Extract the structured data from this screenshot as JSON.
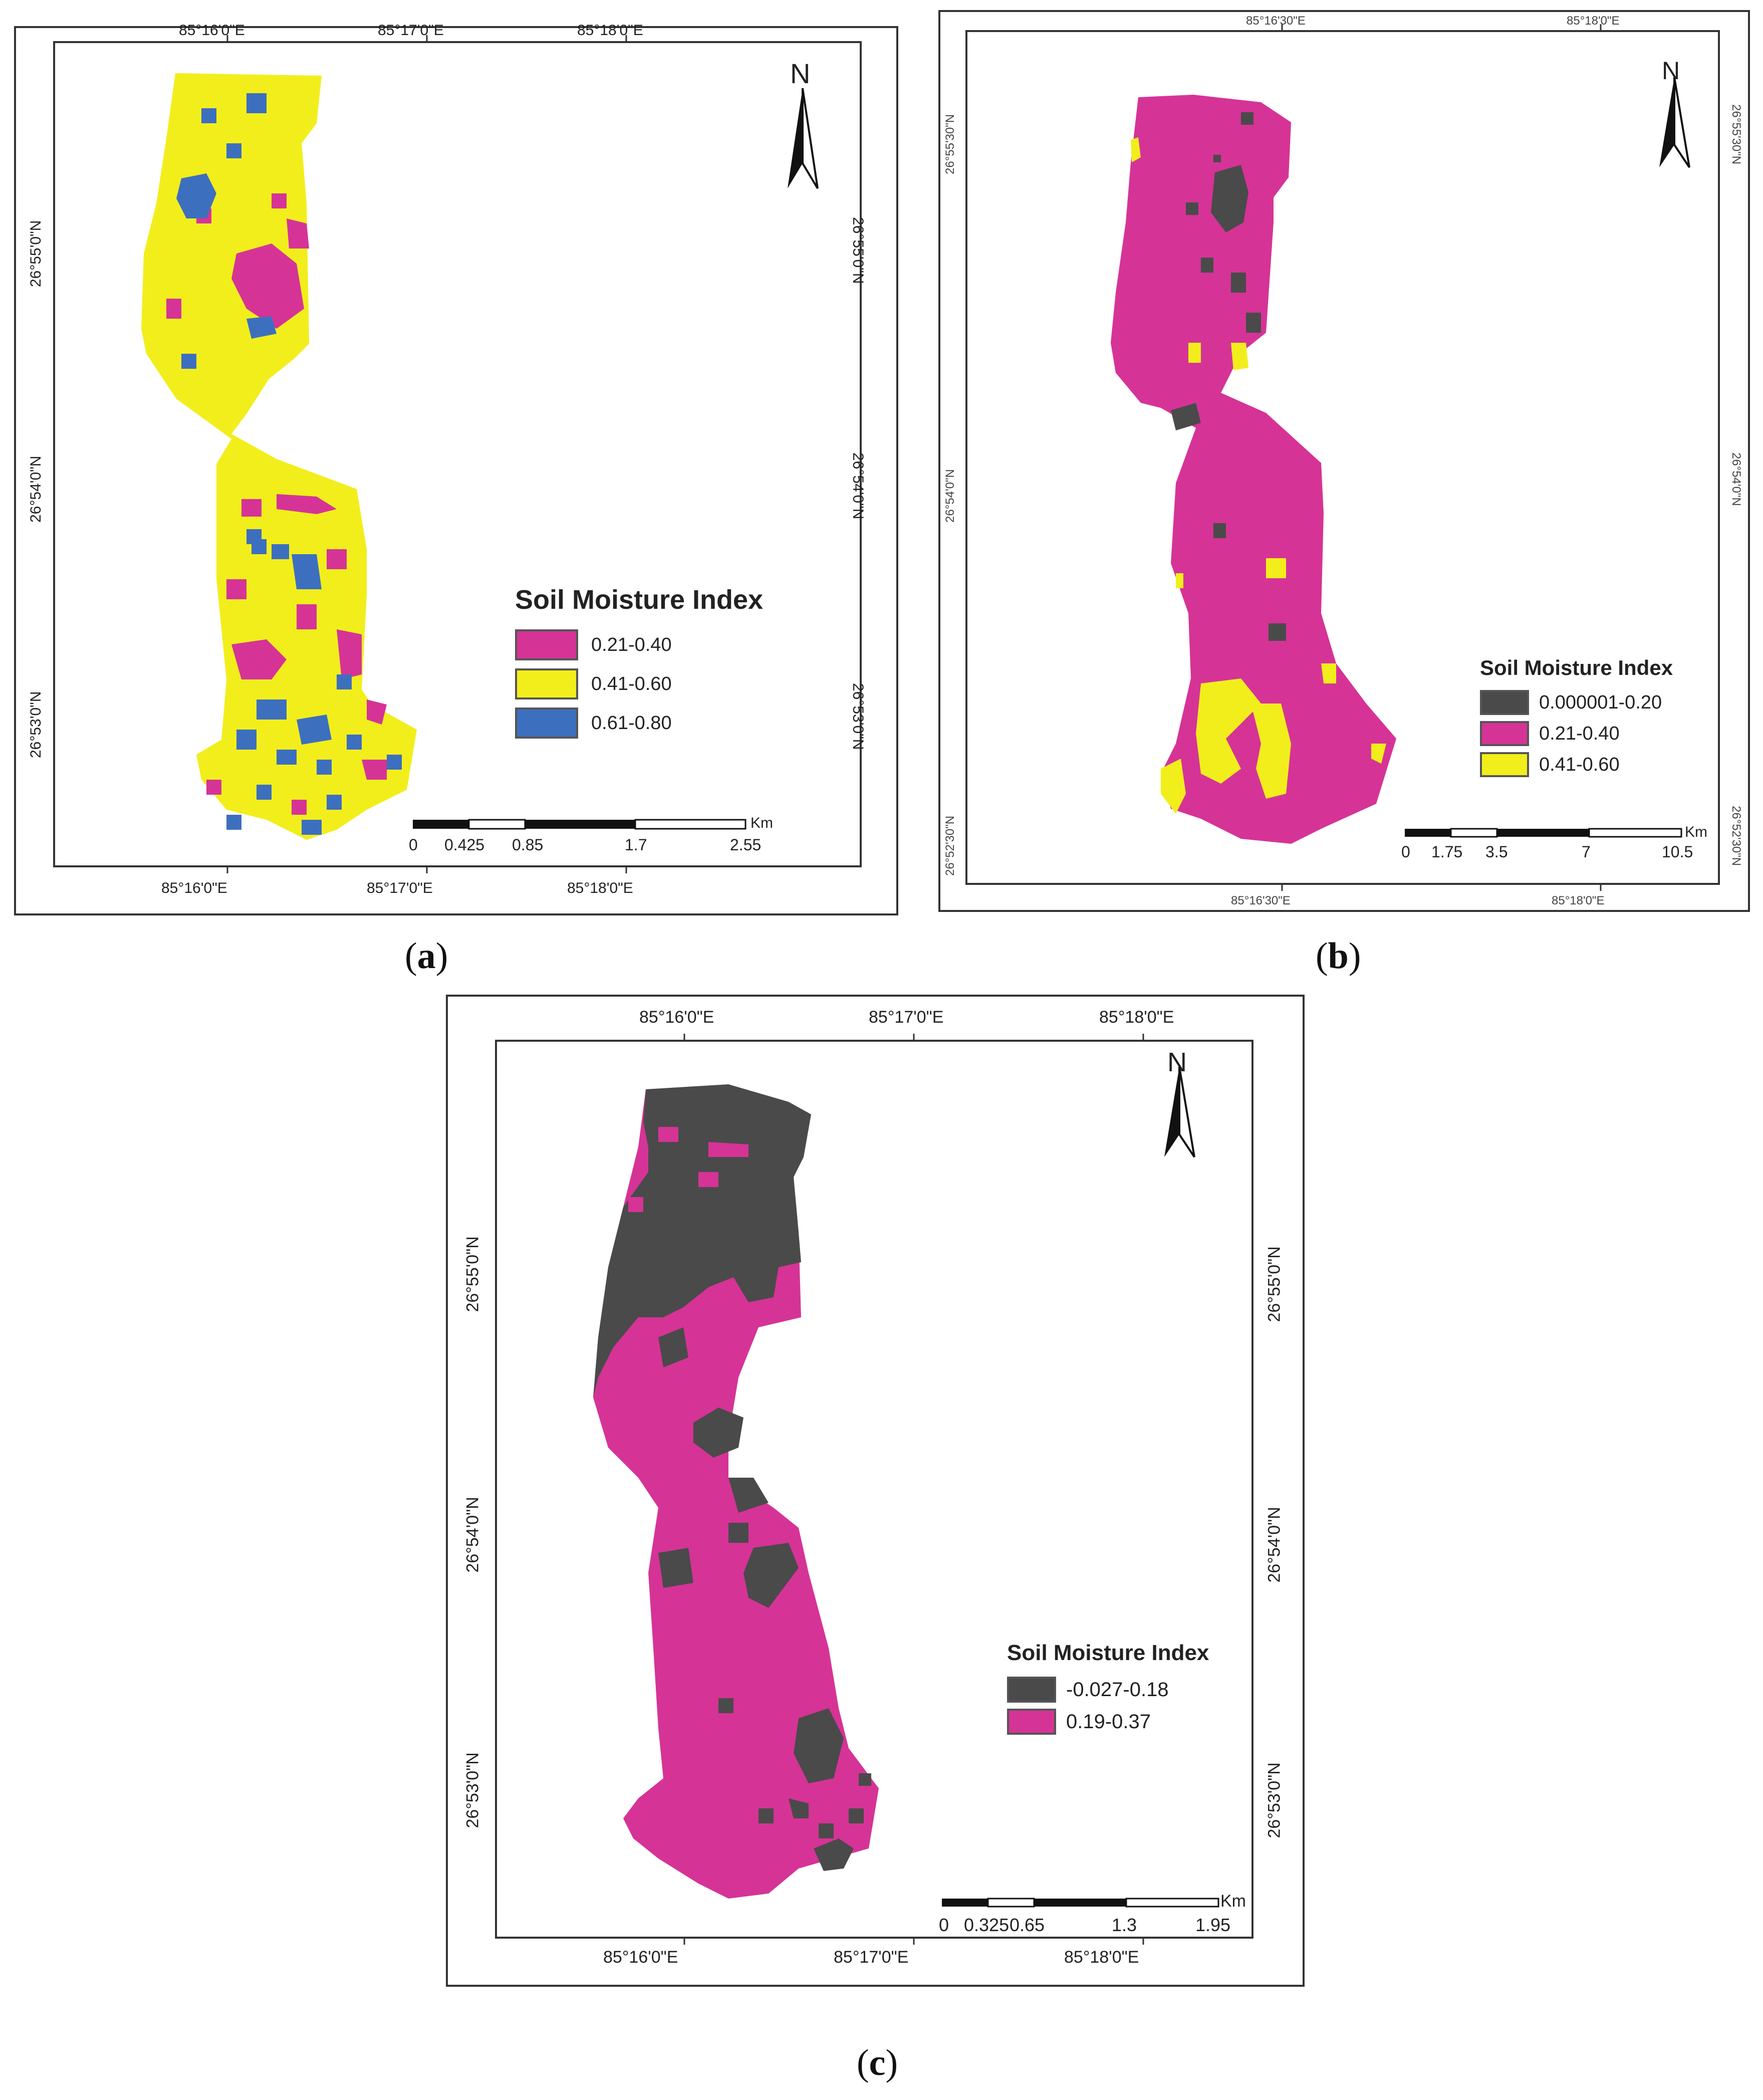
{
  "colors": {
    "magenta": "#d63397",
    "yellow": "#f2ee1c",
    "blue": "#3d6fbf",
    "gray": "#4a4a4a",
    "frame": "#333333"
  },
  "panels": [
    {
      "id": "a",
      "caption_prefix": "(",
      "caption_letter": "a",
      "caption_suffix": ")",
      "top_lon": [
        "85°16'0\"E",
        "85°17'0\"E",
        "85°18'0\"E"
      ],
      "bottom_lon": [
        "85°16'0\"E",
        "85°17'0\"E",
        "85°18'0\"E"
      ],
      "left_lat": [
        "26°55'0\"N",
        "26°54'0\"N",
        "26°53'0\"N"
      ],
      "right_lat": [
        "26°55'0\"N",
        "26°54'0\"N",
        "26°53'0\"N"
      ],
      "north_label": "N",
      "legend": {
        "title": "Soil Moisture Index",
        "items": [
          {
            "label": "0.21-0.40",
            "color": "#d63397"
          },
          {
            "label": "0.41-0.60",
            "color": "#f2ee1c"
          },
          {
            "label": "0.61-0.80",
            "color": "#3d6fbf"
          }
        ]
      },
      "scale": {
        "unit": "Km",
        "ticks": [
          "0",
          "0.425",
          "0.85",
          "1.7",
          "2.55"
        ]
      }
    },
    {
      "id": "b",
      "caption_prefix": "(",
      "caption_letter": "b",
      "caption_suffix": ")",
      "top_lon": [
        "85°16'30\"E",
        "85°18'0\"E"
      ],
      "bottom_lon": [
        "85°16'30\"E",
        "85°18'0\"E"
      ],
      "left_lat": [
        "26°55'30\"N",
        "26°54'0\"N",
        "26°52'30\"N"
      ],
      "right_lat": [
        "26°55'30\"N",
        "26°54'0\"N",
        "26°52'30\"N"
      ],
      "north_label": "N",
      "legend": {
        "title": "Soil Moisture Index",
        "items": [
          {
            "label": "0.000001-0.20",
            "color": "#4a4a4a"
          },
          {
            "label": "0.21-0.40",
            "color": "#d63397"
          },
          {
            "label": "0.41-0.60",
            "color": "#f2ee1c"
          }
        ]
      },
      "scale": {
        "unit": "Km",
        "ticks": [
          "0",
          "1.75",
          "3.5",
          "7",
          "10.5"
        ]
      }
    },
    {
      "id": "c",
      "caption_prefix": "(",
      "caption_letter": "c",
      "caption_suffix": ")",
      "top_lon": [
        "85°16'0\"E",
        "85°17'0\"E",
        "85°18'0\"E"
      ],
      "bottom_lon": [
        "85°16'0\"E",
        "85°17'0\"E",
        "85°18'0\"E"
      ],
      "left_lat": [
        "26°55'0\"N",
        "26°54'0\"N",
        "26°53'0\"N"
      ],
      "right_lat": [
        "26°55'0\"N",
        "26°54'0\"N",
        "26°53'0\"N"
      ],
      "north_label": "N",
      "legend": {
        "title": "Soil Moisture Index",
        "items": [
          {
            "label": "-0.027-0.18",
            "color": "#4a4a4a"
          },
          {
            "label": "0.19-0.37",
            "color": "#d63397"
          }
        ]
      },
      "scale": {
        "unit": "Km",
        "ticks": [
          "0",
          "0.325",
          "0.65",
          "1.3",
          "1.95"
        ]
      }
    }
  ]
}
